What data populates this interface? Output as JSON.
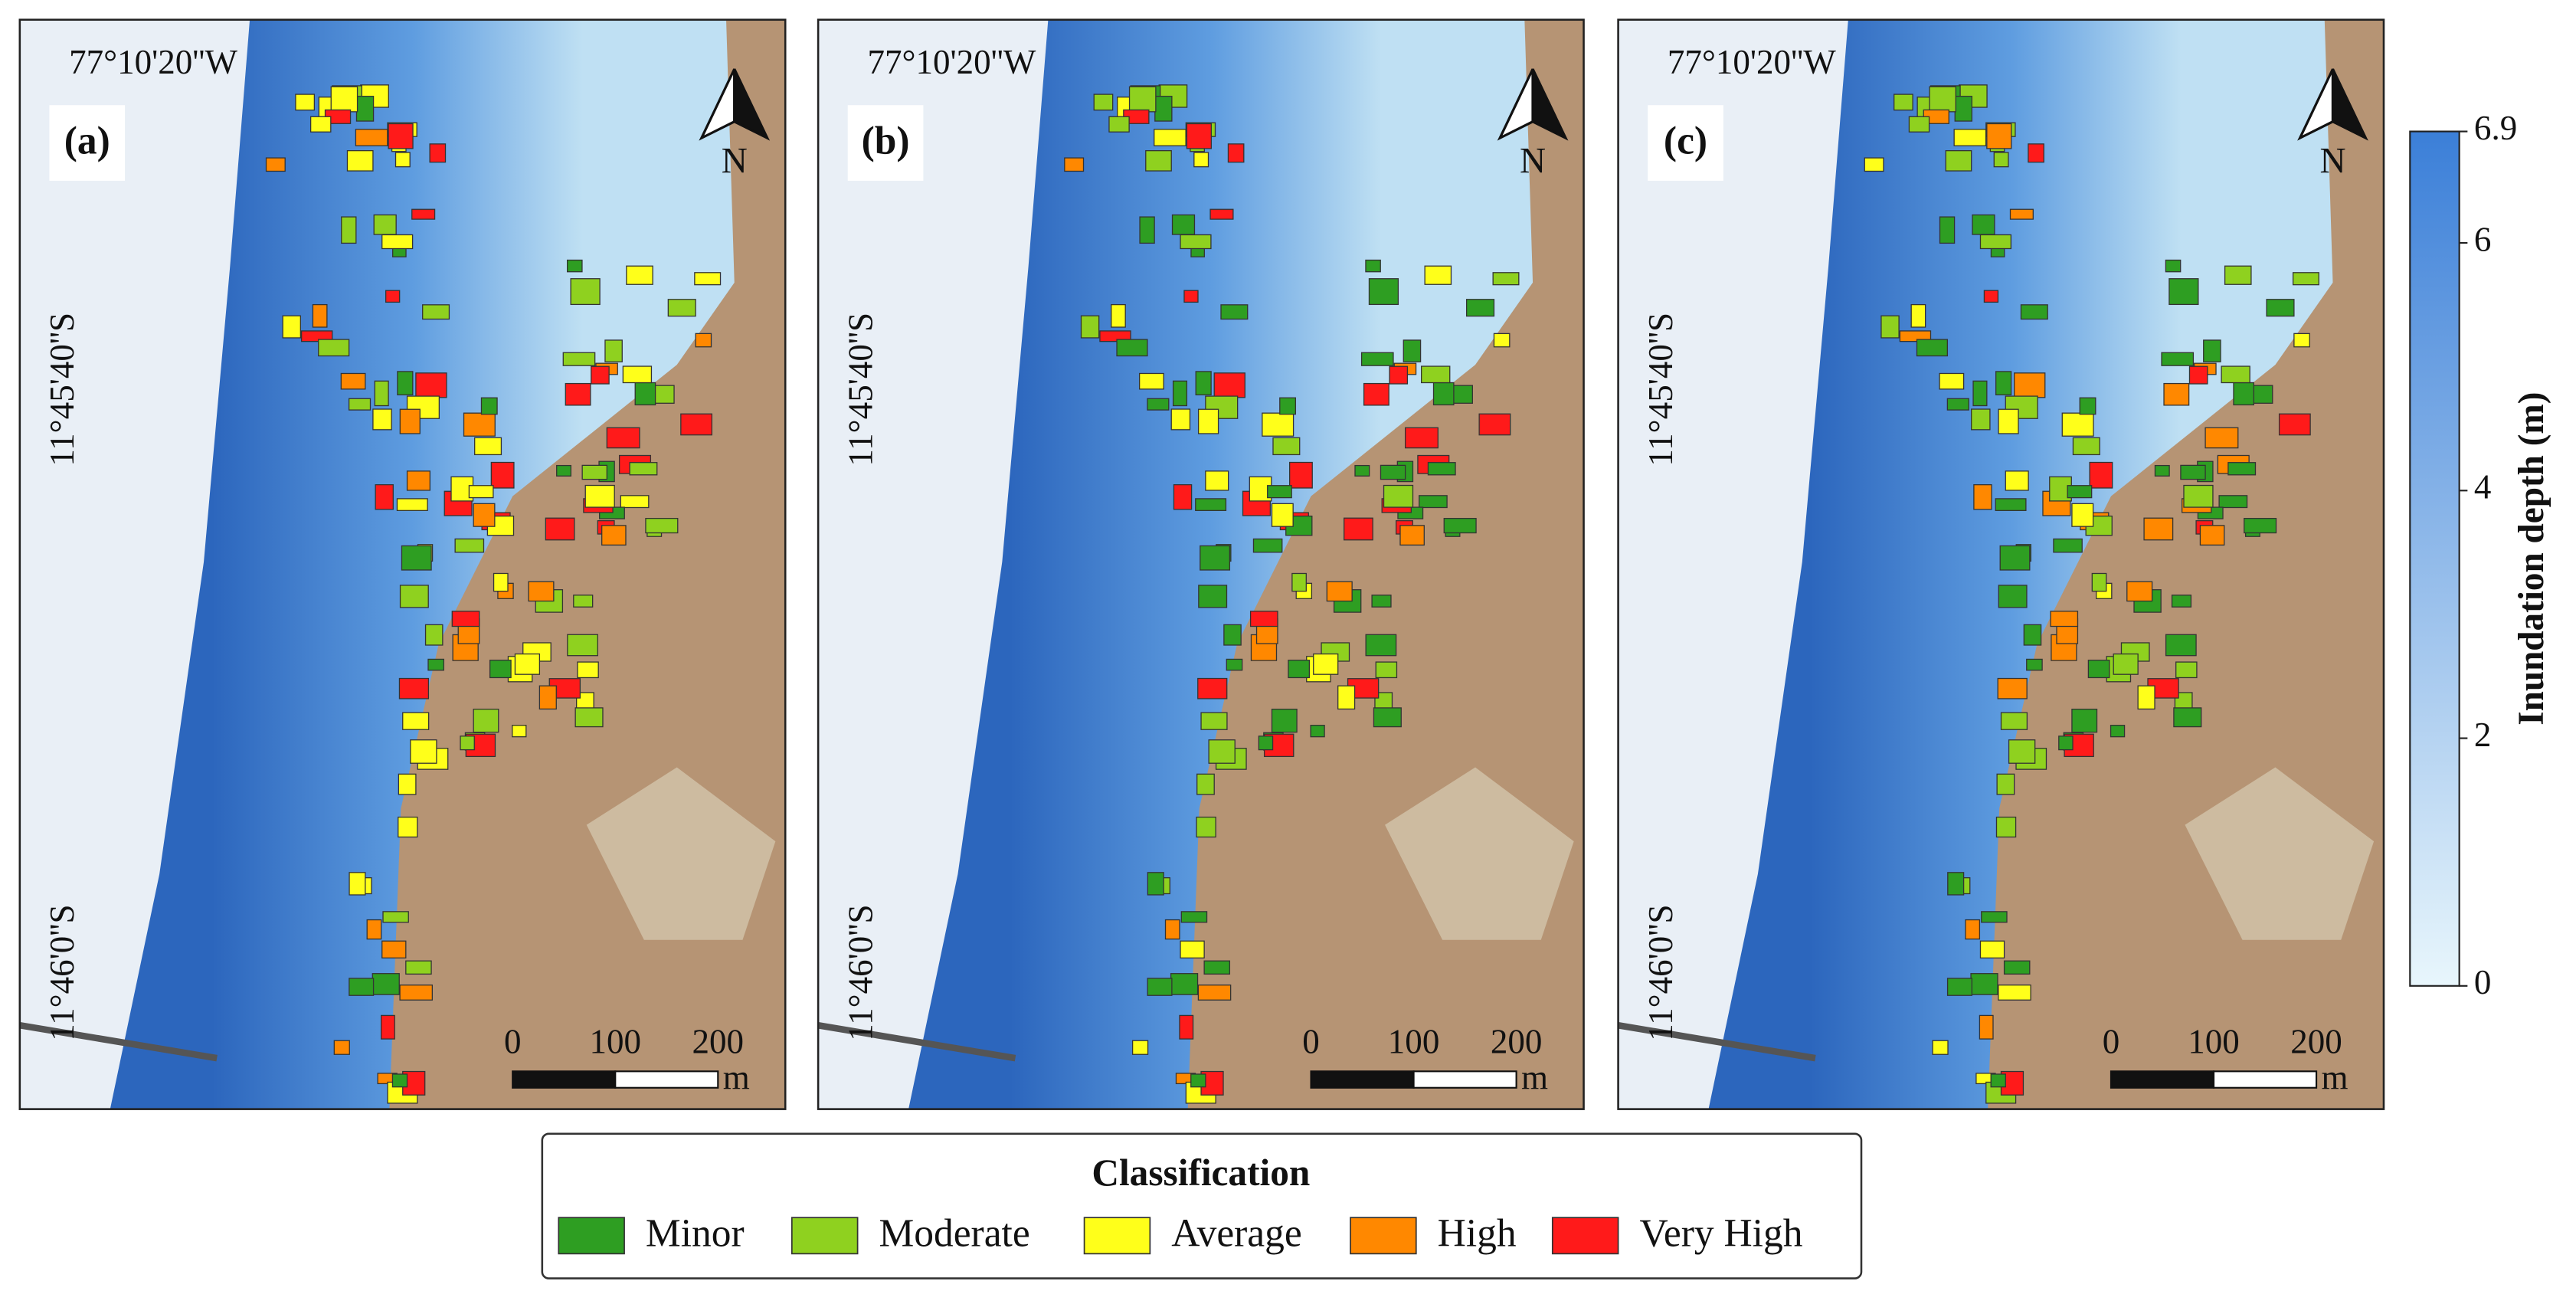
{
  "panels": [
    {
      "label": "(a)"
    },
    {
      "label": "(b)"
    },
    {
      "label": "(c)"
    }
  ],
  "graticule": {
    "longitude": "77°10'20''W",
    "latitudes": [
      "11°45'40''S",
      "11°46'0''S"
    ]
  },
  "north_label": "N",
  "scale_bar": {
    "ticks": [
      0,
      100,
      200
    ],
    "unit": "m"
  },
  "colorbar": {
    "label": "Inundation depth (m)",
    "lim": [
      0,
      6.9
    ],
    "ticks": [
      0,
      2,
      4,
      6,
      6.9
    ],
    "colors": [
      "#e8f6fc",
      "#3b7fd8"
    ]
  },
  "legend": {
    "title": "Classification",
    "items": [
      {
        "name": "Minor",
        "color": "#2e9e22"
      },
      {
        "name": "Moderate",
        "color": "#8fd11f"
      },
      {
        "name": "Average",
        "color": "#ffff1a"
      },
      {
        "name": "High",
        "color": "#ff8800"
      },
      {
        "name": "Very High",
        "color": "#ff1a1a"
      }
    ]
  }
}
